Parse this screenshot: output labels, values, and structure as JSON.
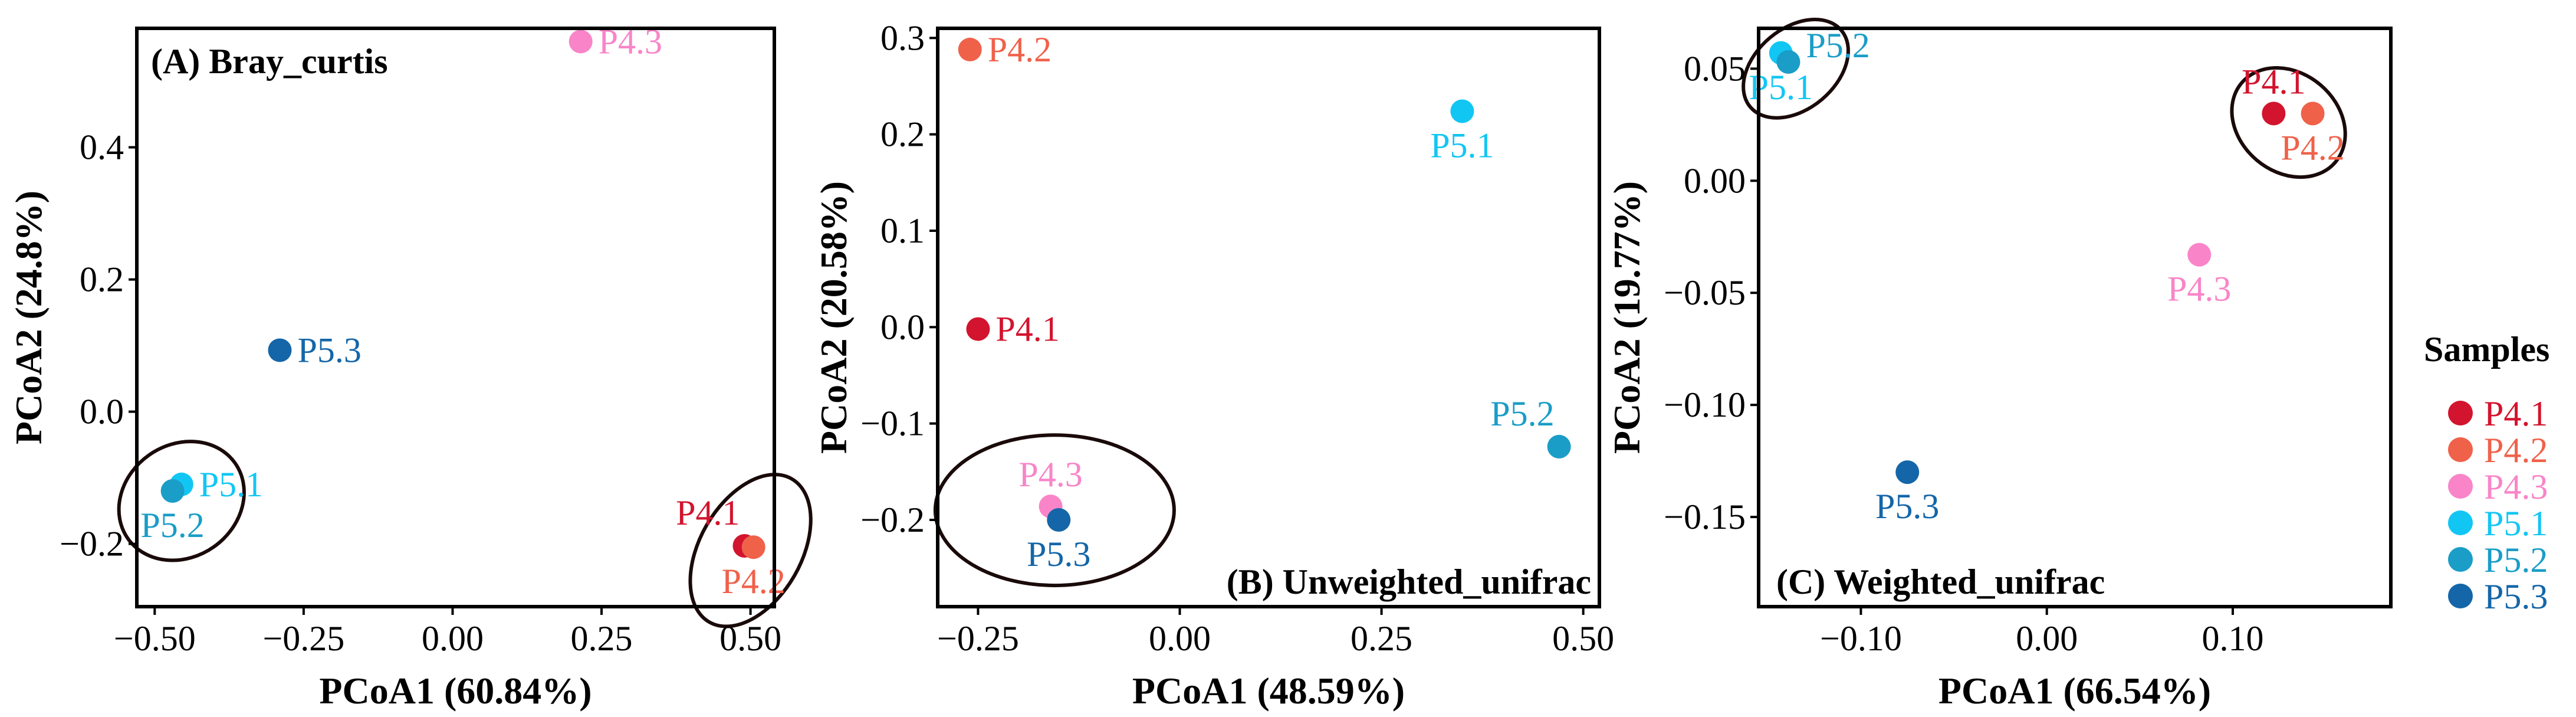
{
  "colors": {
    "P4.1": "#d2142e",
    "P4.2": "#f0614a",
    "P4.3": "#f985c8",
    "P5.1": "#12c6f4",
    "P5.2": "#1a9dc7",
    "P5.3": "#1466a8"
  },
  "legend": {
    "title": "Samples",
    "entries": [
      "P4.1",
      "P4.2",
      "P4.3",
      "P5.1",
      "P5.2",
      "P5.3"
    ]
  },
  "chart_data": [
    {
      "type": "scatter",
      "title": "(A) Bray_curtis",
      "title_position": "top-left",
      "xlabel": "PCoA1 (60.84%)",
      "ylabel": "PCoA2 (24.8%)",
      "xlim": [
        -0.53,
        0.54
      ],
      "ylim": [
        -0.295,
        0.58
      ],
      "xticks": [
        -0.5,
        -0.25,
        0.0,
        0.25,
        0.5
      ],
      "xtick_labels": [
        "−0.50",
        "−0.25",
        "0.00",
        "0.25",
        "0.50"
      ],
      "yticks": [
        -0.2,
        0.0,
        0.2,
        0.4
      ],
      "ytick_labels": [
        "−0.2",
        "0.0",
        "0.2",
        "0.4"
      ],
      "points": [
        {
          "name": "P4.1",
          "x": 0.49,
          "y": -0.203,
          "label_pos": "above-left"
        },
        {
          "name": "P4.2",
          "x": 0.505,
          "y": -0.205,
          "label_pos": "below"
        },
        {
          "name": "P4.3",
          "x": 0.215,
          "y": 0.56,
          "label_pos": "right"
        },
        {
          "name": "P5.1",
          "x": -0.455,
          "y": -0.11,
          "label_pos": "right"
        },
        {
          "name": "P5.2",
          "x": -0.47,
          "y": -0.12,
          "label_pos": "below"
        },
        {
          "name": "P5.3",
          "x": -0.29,
          "y": 0.093,
          "label_pos": "right"
        }
      ],
      "ellipses": [
        {
          "cx": 0.5,
          "cy": -0.21,
          "rx": 0.085,
          "ry": 0.125,
          "angle": 30
        },
        {
          "cx": -0.455,
          "cy": -0.135,
          "rx": 0.11,
          "ry": 0.085,
          "angle": -35
        }
      ]
    },
    {
      "type": "scatter",
      "title": "(B) Unweighted_unifrac",
      "title_position": "bottom-right",
      "xlabel": "PCoA1 (48.59%)",
      "ylabel": "PCoA2 (20.58%)",
      "xlim": [
        -0.3,
        0.52
      ],
      "ylim": [
        -0.29,
        0.31
      ],
      "xticks": [
        -0.25,
        0.0,
        0.25,
        0.5
      ],
      "xtick_labels": [
        "−0.25",
        "0.00",
        "0.25",
        "0.50"
      ],
      "yticks": [
        -0.2,
        -0.1,
        0.0,
        0.1,
        0.2,
        0.3
      ],
      "ytick_labels": [
        "−0.2",
        "−0.1",
        "0.0",
        "0.1",
        "0.2",
        "0.3"
      ],
      "points": [
        {
          "name": "P4.1",
          "x": -0.25,
          "y": -0.002,
          "label_pos": "right"
        },
        {
          "name": "P4.2",
          "x": -0.26,
          "y": 0.288,
          "label_pos": "right"
        },
        {
          "name": "P4.3",
          "x": -0.16,
          "y": -0.186,
          "label_pos": "above"
        },
        {
          "name": "P5.1",
          "x": 0.35,
          "y": 0.224,
          "label_pos": "below"
        },
        {
          "name": "P5.2",
          "x": 0.47,
          "y": -0.124,
          "label_pos": "above-left"
        },
        {
          "name": "P5.3",
          "x": -0.15,
          "y": -0.2,
          "label_pos": "below"
        }
      ],
      "ellipses": [
        {
          "cx": -0.155,
          "cy": -0.19,
          "rx": 0.148,
          "ry": 0.078,
          "angle": 0
        }
      ]
    },
    {
      "type": "scatter",
      "title": "(C) Weighted_unifrac",
      "title_position": "bottom-left",
      "xlabel": "PCoA1 (66.54%)",
      "ylabel": "PCoA2 (19.77%)",
      "xlim": [
        -0.155,
        0.185
      ],
      "ylim": [
        -0.19,
        0.068
      ],
      "xticks": [
        -0.1,
        0.0,
        0.1
      ],
      "xtick_labels": [
        "−0.10",
        "0.00",
        "0.10"
      ],
      "yticks": [
        -0.15,
        -0.1,
        -0.05,
        0.0,
        0.05
      ],
      "ytick_labels": [
        "−0.15",
        "−0.10",
        "−0.05",
        "0.00",
        "0.05"
      ],
      "points": [
        {
          "name": "P4.1",
          "x": 0.122,
          "y": 0.03,
          "label_pos": "above"
        },
        {
          "name": "P4.2",
          "x": 0.143,
          "y": 0.03,
          "label_pos": "below"
        },
        {
          "name": "P4.3",
          "x": 0.082,
          "y": -0.033,
          "label_pos": "below"
        },
        {
          "name": "P5.1",
          "x": -0.143,
          "y": 0.057,
          "label_pos": "below"
        },
        {
          "name": "P5.2",
          "x": -0.139,
          "y": 0.053,
          "label_pos": "right-up"
        },
        {
          "name": "P5.3",
          "x": -0.075,
          "y": -0.13,
          "label_pos": "below"
        }
      ],
      "ellipses": [
        {
          "cx": -0.135,
          "cy": 0.05,
          "rx": 0.032,
          "ry": 0.018,
          "angle": -40
        },
        {
          "cx": 0.13,
          "cy": 0.026,
          "rx": 0.033,
          "ry": 0.022,
          "angle": 40
        }
      ]
    }
  ]
}
